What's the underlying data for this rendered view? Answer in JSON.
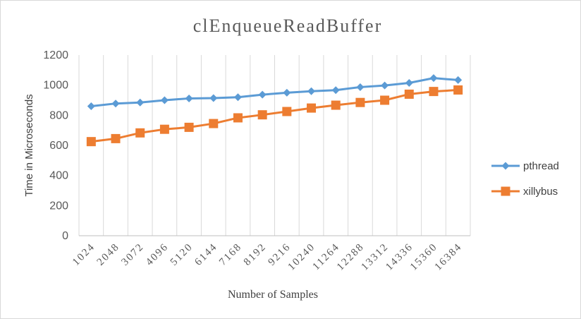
{
  "chart_data": {
    "type": "line",
    "title": "clEnqueueReadBuffer",
    "xlabel": "Number of Samples",
    "ylabel": "Time in Microseconds",
    "ylim": [
      0,
      1200
    ],
    "yticks": [
      0,
      200,
      400,
      600,
      800,
      1000,
      1200
    ],
    "grid": "vertical",
    "legend_position": "right",
    "categories": [
      "1024",
      "2048",
      "3072",
      "4096",
      "5120",
      "6144",
      "7168",
      "8192",
      "9216",
      "10240",
      "11264",
      "12288",
      "13312",
      "14336",
      "15360",
      "16384"
    ],
    "series": [
      {
        "name": "pthread",
        "color": "#5b9bd5",
        "marker": "diamond",
        "values": [
          860,
          878,
          885,
          900,
          912,
          914,
          920,
          937,
          950,
          960,
          967,
          987,
          998,
          1015,
          1047,
          1034
        ]
      },
      {
        "name": "xillybus",
        "color": "#ed7d31",
        "marker": "square",
        "values": [
          625,
          645,
          683,
          707,
          720,
          745,
          783,
          803,
          825,
          848,
          867,
          885,
          900,
          940,
          958,
          968
        ]
      }
    ]
  }
}
